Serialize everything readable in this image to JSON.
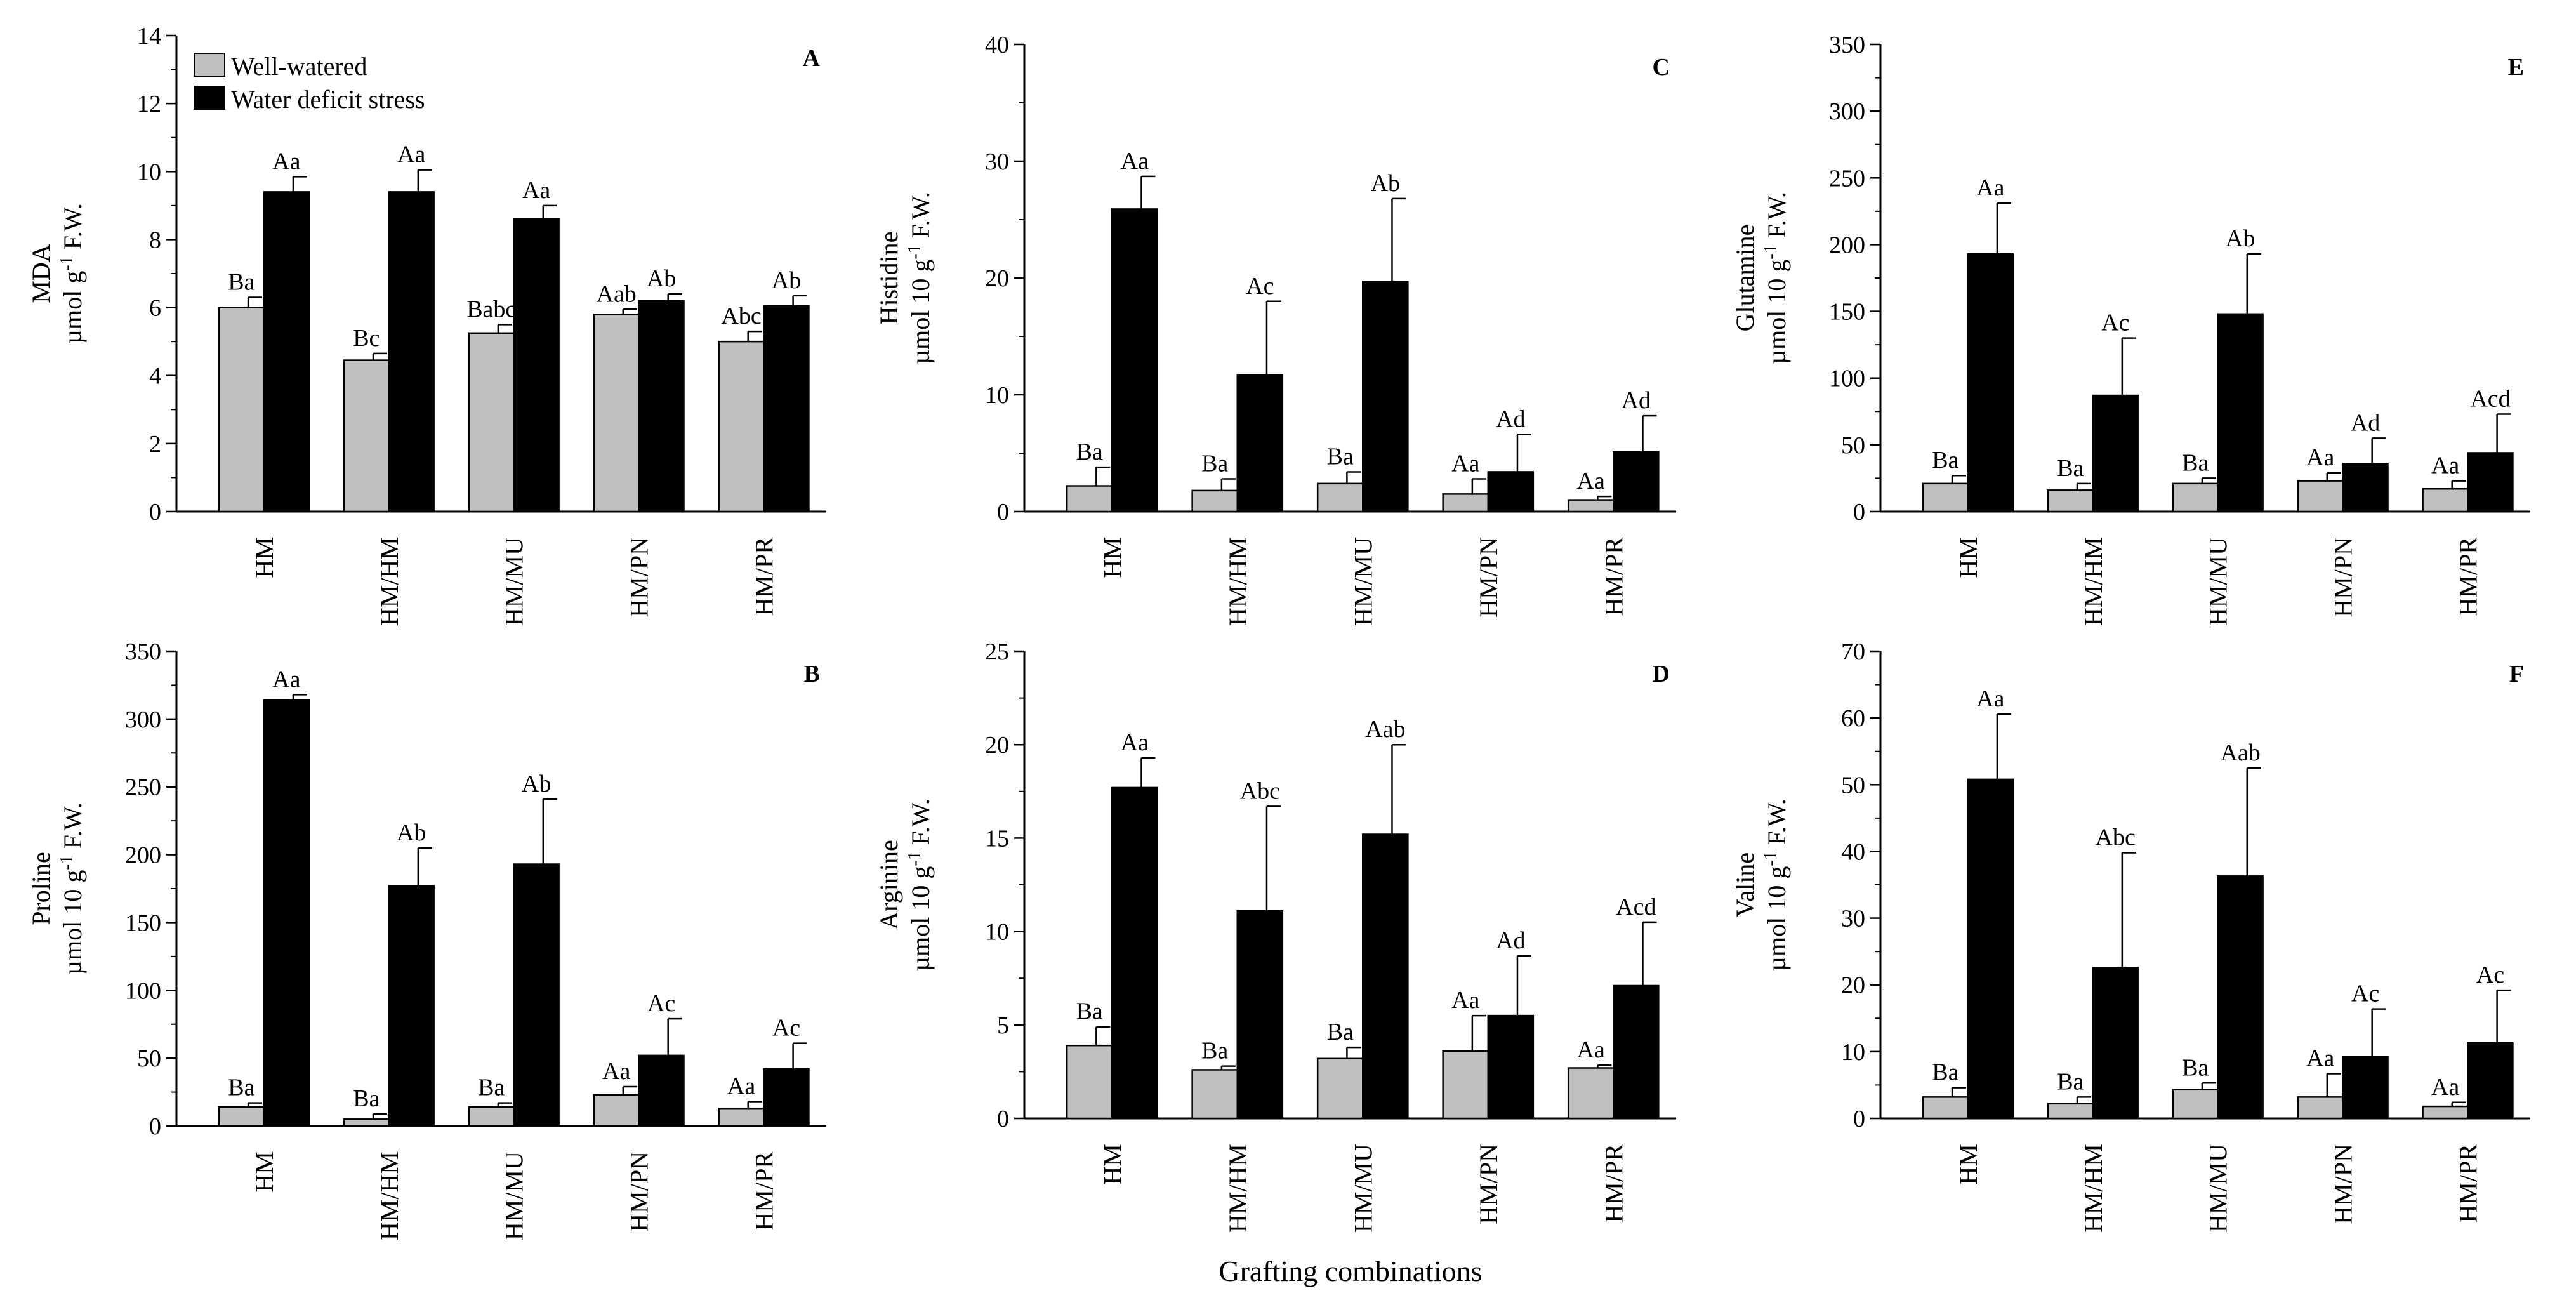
{
  "colors": {
    "well_watered": "#c0c0c0",
    "water_deficit": "#000000",
    "axis": "#000000"
  },
  "legend": {
    "well_watered": "Well-watered",
    "water_deficit": "Water deficit stress"
  },
  "common_xlabel": "Grafting combinations",
  "chart_data": [
    {
      "id": "A",
      "type": "bar",
      "panel": "A",
      "ylabel_line1": "MDA",
      "ylabel_line2": "µmol g",
      "ylabel_sup": "-1",
      "ylabel_line2_end": " F.W.",
      "ylim": [
        0,
        14
      ],
      "ticks": [
        0,
        2,
        4,
        6,
        8,
        10,
        12,
        14
      ],
      "minor": 2,
      "categories": [
        "HM",
        "HM/HM",
        "HM/MU",
        "HM/PN",
        "HM/PR"
      ],
      "series": [
        {
          "name": "Well-watered",
          "values": [
            6.0,
            4.45,
            5.25,
            5.8,
            5.0
          ],
          "errors": [
            0.3,
            0.2,
            0.25,
            0.15,
            0.3
          ],
          "labels": [
            "Ba",
            "Bc",
            "Babc",
            "Aab",
            "Abc"
          ]
        },
        {
          "name": "Water deficit stress",
          "values": [
            9.4,
            9.4,
            8.6,
            6.2,
            6.05
          ],
          "errors": [
            0.45,
            0.65,
            0.4,
            0.2,
            0.3
          ],
          "labels": [
            "Aa",
            "Aa",
            "Aa",
            "Ab",
            "Ab"
          ]
        }
      ]
    },
    {
      "id": "B",
      "type": "bar",
      "panel": "B",
      "ylabel_line1": "Proline",
      "ylabel_line2": "µmol 10 g",
      "ylabel_sup": "-1",
      "ylabel_line2_end": " F.W.",
      "ylim": [
        0,
        350
      ],
      "ticks": [
        0,
        50,
        100,
        150,
        200,
        250,
        300,
        350
      ],
      "minor": 2,
      "categories": [
        "HM",
        "HM/HM",
        "HM/MU",
        "HM/PN",
        "HM/PR"
      ],
      "series": [
        {
          "name": "Well-watered",
          "values": [
            14,
            5,
            14,
            23,
            13
          ],
          "errors": [
            3,
            4,
            3,
            6,
            5
          ],
          "labels": [
            "Ba",
            "Ba",
            "Ba",
            "Aa",
            "Aa"
          ]
        },
        {
          "name": "Water deficit stress",
          "values": [
            314,
            177,
            193,
            52,
            42
          ],
          "errors": [
            4,
            28,
            48,
            27,
            19
          ],
          "labels": [
            "Aa",
            "Ab",
            "Ab",
            "Ac",
            "Ac"
          ]
        }
      ]
    },
    {
      "id": "C",
      "type": "bar",
      "panel": "C",
      "ylabel_line1": "Histidine",
      "ylabel_line2": "µmol 10 g",
      "ylabel_sup": "-1",
      "ylabel_line2_end": " F.W.",
      "ylim": [
        0,
        40
      ],
      "ticks": [
        0,
        10,
        20,
        30,
        40
      ],
      "minor": 2,
      "categories": [
        "HM",
        "HM/HM",
        "HM/MU",
        "HM/PN",
        "HM/PR"
      ],
      "series": [
        {
          "name": "Well-watered",
          "values": [
            2.2,
            1.8,
            2.4,
            1.5,
            1.0
          ],
          "errors": [
            1.6,
            1.0,
            1.0,
            1.3,
            0.3
          ],
          "labels": [
            "Ba",
            "Ba",
            "Ba",
            "Aa",
            "Aa"
          ]
        },
        {
          "name": "Water deficit stress",
          "values": [
            25.9,
            11.7,
            19.7,
            3.4,
            5.1
          ],
          "errors": [
            2.8,
            6.3,
            7.1,
            3.2,
            3.1
          ],
          "labels": [
            "Aa",
            "Ac",
            "Ab",
            "Ad",
            "Ad"
          ]
        }
      ]
    },
    {
      "id": "D",
      "type": "bar",
      "panel": "D",
      "ylabel_line1": "Arginine",
      "ylabel_line2": "µmol 10 g",
      "ylabel_sup": "-1",
      "ylabel_line2_end": " F.W.",
      "ylim": [
        0,
        25
      ],
      "ticks": [
        0,
        5,
        10,
        15,
        20,
        25
      ],
      "minor": 2,
      "categories": [
        "HM",
        "HM/HM",
        "HM/MU",
        "HM/PN",
        "HM/PR"
      ],
      "series": [
        {
          "name": "Well-watered",
          "values": [
            3.9,
            2.6,
            3.2,
            3.6,
            2.7
          ],
          "errors": [
            1.0,
            0.2,
            0.6,
            1.9,
            0.15
          ],
          "labels": [
            "Ba",
            "Ba",
            "Ba",
            "Aa",
            "Aa"
          ]
        },
        {
          "name": "Water deficit stress",
          "values": [
            17.7,
            11.1,
            15.2,
            5.5,
            7.1
          ],
          "errors": [
            1.6,
            5.6,
            4.8,
            3.2,
            3.4
          ],
          "labels": [
            "Aa",
            "Abc",
            "Aab",
            "Ad",
            "Acd"
          ]
        }
      ]
    },
    {
      "id": "E",
      "type": "bar",
      "panel": "E",
      "ylabel_line1": "Glutamine",
      "ylabel_line2": "µmol 10 g",
      "ylabel_sup": "-1",
      "ylabel_line2_end": " F.W.",
      "ylim": [
        0,
        350
      ],
      "ticks": [
        0,
        50,
        100,
        150,
        200,
        250,
        300,
        350
      ],
      "minor": 2,
      "categories": [
        "HM",
        "HM/HM",
        "HM/MU",
        "HM/PN",
        "HM/PR"
      ],
      "series": [
        {
          "name": "Well-watered",
          "values": [
            21,
            16,
            21,
            23,
            17
          ],
          "errors": [
            6,
            5,
            4,
            6,
            6
          ],
          "labels": [
            "Ba",
            "Ba",
            "Ba",
            "Aa",
            "Aa"
          ]
        },
        {
          "name": "Water deficit stress",
          "values": [
            193,
            87,
            148,
            36,
            44
          ],
          "errors": [
            38,
            43,
            45,
            19,
            29
          ],
          "labels": [
            "Aa",
            "Ac",
            "Ab",
            "Ad",
            "Acd"
          ]
        }
      ]
    },
    {
      "id": "F",
      "type": "bar",
      "panel": "F",
      "ylabel_line1": "Valine",
      "ylabel_line2": "µmol 10 g",
      "ylabel_sup": "-1",
      "ylabel_line2_end": " F.W.",
      "ylim": [
        0,
        70
      ],
      "ticks": [
        0,
        10,
        20,
        30,
        40,
        50,
        60,
        70
      ],
      "minor": 2,
      "categories": [
        "HM",
        "HM/HM",
        "HM/MU",
        "HM/PN",
        "HM/PR"
      ],
      "series": [
        {
          "name": "Well-watered",
          "values": [
            3.2,
            2.2,
            4.3,
            3.2,
            1.8
          ],
          "errors": [
            1.4,
            1.0,
            1.0,
            3.5,
            0.6
          ],
          "labels": [
            "Ba",
            "Ba",
            "Ba",
            "Aa",
            "Aa"
          ]
        },
        {
          "name": "Water deficit stress",
          "values": [
            50.8,
            22.6,
            36.3,
            9.2,
            11.3
          ],
          "errors": [
            9.8,
            17.2,
            16.2,
            7.2,
            7.9
          ],
          "labels": [
            "Aa",
            "Abc",
            "Aab",
            "Ac",
            "Ac"
          ]
        }
      ]
    }
  ]
}
